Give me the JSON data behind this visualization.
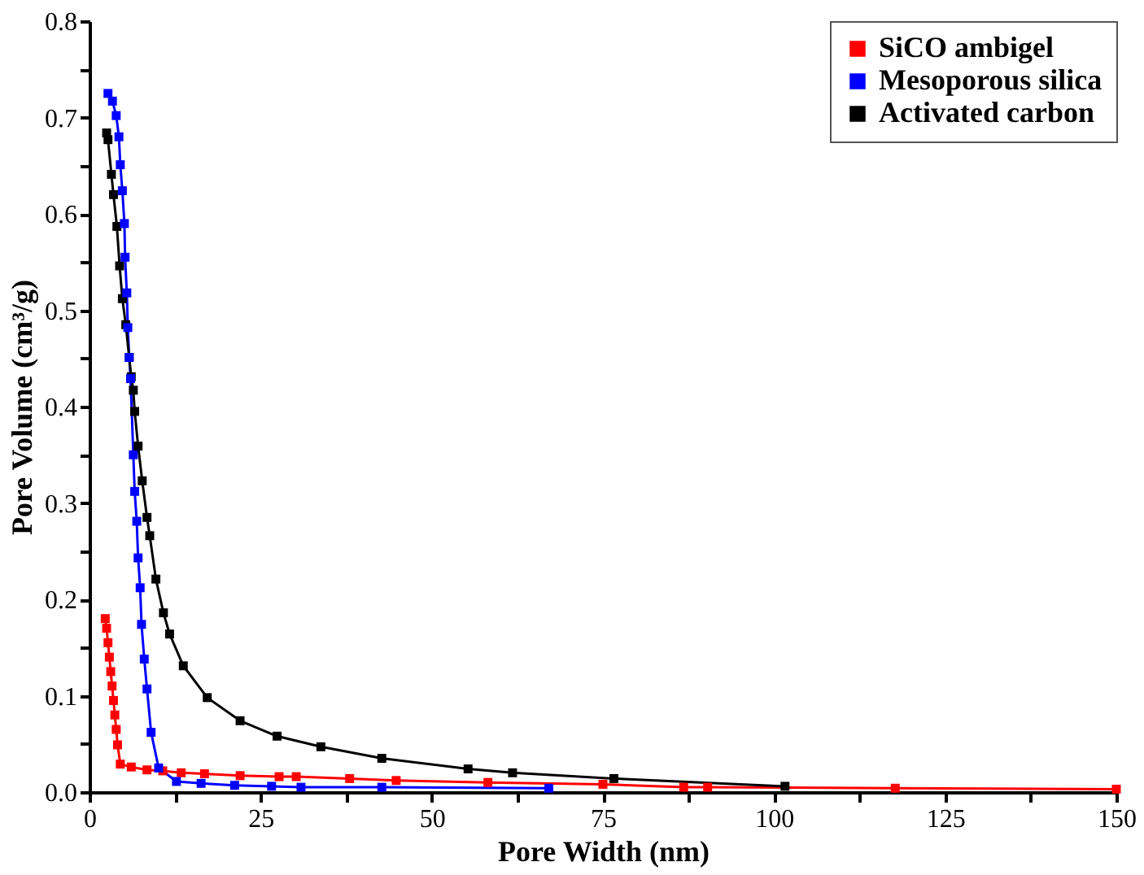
{
  "chart_data": {
    "type": "line",
    "xlabel": "Pore Width (nm)",
    "ylabel": "Pore Volume (cm³/g)",
    "xlim": [
      0,
      150
    ],
    "ylim": [
      0,
      0.8
    ],
    "xticks": [
      0,
      {
        "value": 12.5,
        "label": null
      },
      25,
      {
        "value": 37.5,
        "label": null
      },
      50,
      {
        "value": 62.5,
        "label": null
      },
      75,
      {
        "value": 87.5,
        "label": null
      },
      100,
      {
        "value": 112.5,
        "label": null
      },
      125,
      {
        "value": 137.5,
        "label": null
      },
      150
    ],
    "yticks": [
      {
        "value": 0,
        "label": "0.0"
      },
      {
        "value": 0.05,
        "label": null
      },
      0.1,
      {
        "value": 0.15,
        "label": null
      },
      0.2,
      {
        "value": 0.25,
        "label": null
      },
      0.3,
      {
        "value": 0.35,
        "label": null
      },
      0.4,
      {
        "value": 0.45,
        "label": null
      },
      0.5,
      {
        "value": 0.55,
        "label": null
      },
      0.6,
      {
        "value": 0.65,
        "label": null
      },
      0.7,
      {
        "value": 0.75,
        "label": null
      },
      0.8
    ],
    "grid": false,
    "legend": "top right",
    "marker": "square",
    "line_style": "solid",
    "series": [
      {
        "name": "SiCO ambigel",
        "color": "#ff0000",
        "x": [
          2.3,
          2.5,
          2.7,
          2.9,
          3.1,
          3.3,
          3.5,
          3.7,
          3.9,
          4.1,
          4.5,
          6.1,
          8.4,
          10.7,
          13.4,
          16.8,
          22.0,
          27.7,
          30.2,
          38.0,
          44.8,
          58.2,
          75.0,
          86.8,
          90.3,
          117.7,
          150
        ],
        "values": [
          0.18,
          0.17,
          0.155,
          0.14,
          0.125,
          0.11,
          0.095,
          0.08,
          0.065,
          0.049,
          0.029,
          0.026,
          0.023,
          0.022,
          0.02,
          0.019,
          0.017,
          0.016,
          0.016,
          0.014,
          0.012,
          0.01,
          0.008,
          0.005,
          0.005,
          0.004,
          0.003
        ]
      },
      {
        "name": "Mesoporous silica",
        "color": "#0000ff",
        "x": [
          2.7,
          3.35,
          3.9,
          4.3,
          4.5,
          4.8,
          5.1,
          5.2,
          5.45,
          5.6,
          5.8,
          6.0,
          6.4,
          6.6,
          6.9,
          7.1,
          7.4,
          7.6,
          8.0,
          8.4,
          9.0,
          10.1,
          12.7,
          16.3,
          21.2,
          26.6,
          30.9,
          42.7,
          67.1
        ],
        "values": [
          0.725,
          0.717,
          0.702,
          0.68,
          0.651,
          0.624,
          0.59,
          0.555,
          0.518,
          0.482,
          0.451,
          0.429,
          0.35,
          0.312,
          0.281,
          0.243,
          0.212,
          0.174,
          0.138,
          0.107,
          0.062,
          0.025,
          0.011,
          0.009,
          0.007,
          0.006,
          0.005,
          0.005,
          0.004
        ]
      },
      {
        "name": "Activated carbon",
        "color": "#000000",
        "x": [
          2.5,
          2.7,
          3.2,
          3.5,
          4.0,
          4.4,
          4.8,
          5.3,
          5.8,
          6.1,
          6.4,
          6.6,
          7.1,
          7.7,
          8.4,
          8.8,
          9.7,
          10.8,
          11.7,
          13.7,
          17.2,
          22.0,
          27.4,
          33.8,
          42.7,
          55.3,
          61.8,
          76.6,
          101.6
        ],
        "values": [
          0.684,
          0.677,
          0.641,
          0.62,
          0.587,
          0.546,
          0.512,
          0.485,
          0.451,
          0.431,
          0.417,
          0.395,
          0.359,
          0.323,
          0.285,
          0.266,
          0.221,
          0.186,
          0.164,
          0.131,
          0.098,
          0.074,
          0.058,
          0.047,
          0.035,
          0.024,
          0.02,
          0.014,
          0.006
        ]
      }
    ]
  }
}
